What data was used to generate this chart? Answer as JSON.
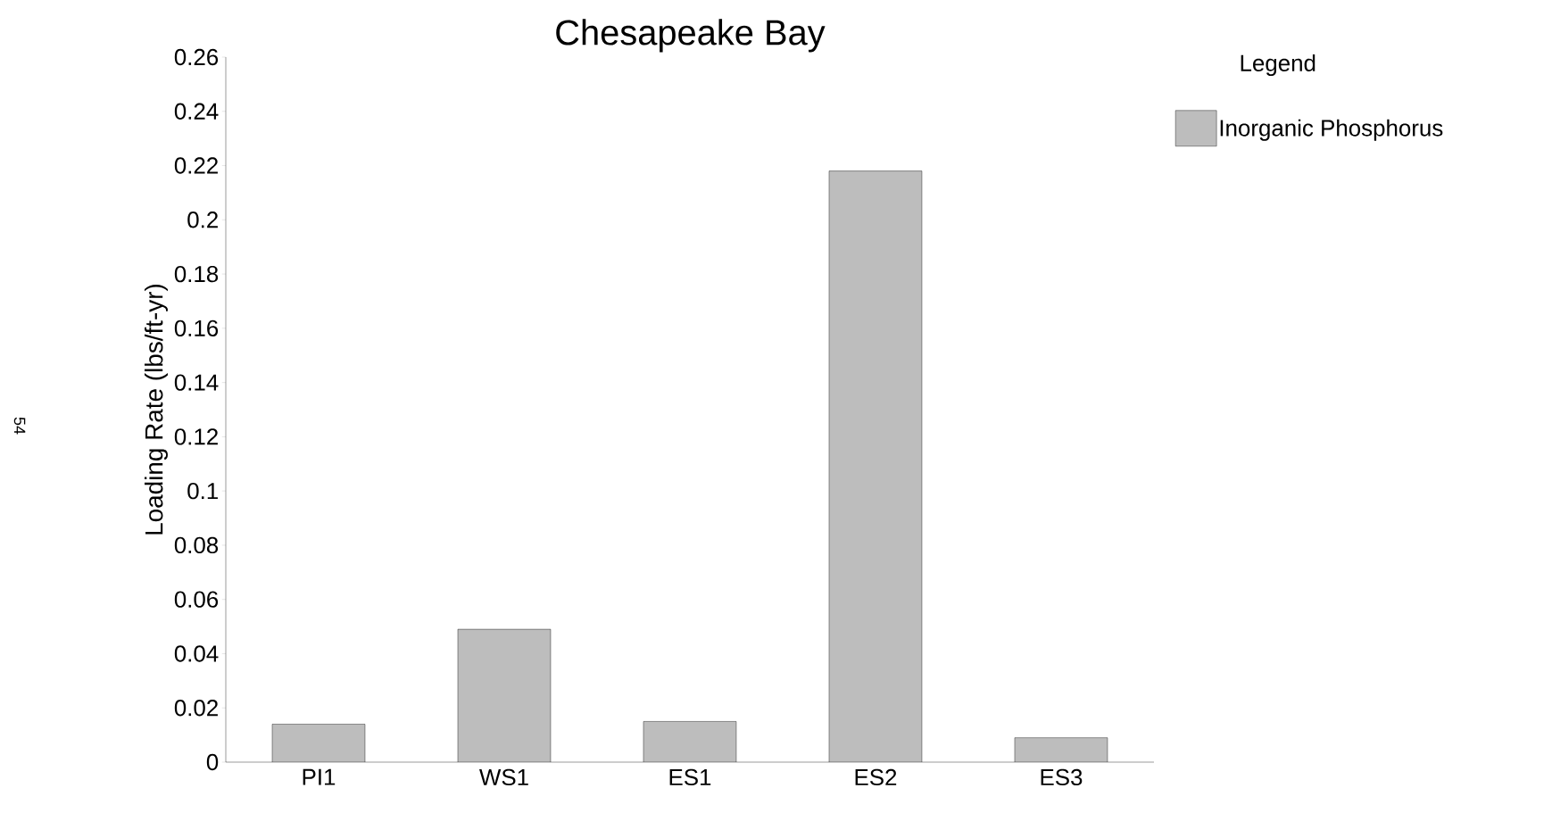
{
  "chart_data": {
    "type": "bar",
    "title": "Chesapeake Bay",
    "ylabel": "Loading Rate (lbs/ft-yr)",
    "legend_title": "Legend",
    "categories": [
      "PI1",
      "WS1",
      "ES1",
      "ES2",
      "ES3"
    ],
    "series": [
      {
        "name": "Inorganic Phosphorus",
        "color": "#bdbdbd",
        "values": [
          0.014,
          0.049,
          0.015,
          0.218,
          0.009
        ]
      }
    ],
    "ylim": [
      0,
      0.26
    ],
    "yticks": [
      0,
      0.02,
      0.04,
      0.06,
      0.08,
      0.1,
      0.12,
      0.14,
      0.16,
      0.18,
      0.2,
      0.22,
      0.24,
      0.26
    ],
    "grid": false,
    "legend": "top right",
    "annotations": [
      "54"
    ]
  }
}
